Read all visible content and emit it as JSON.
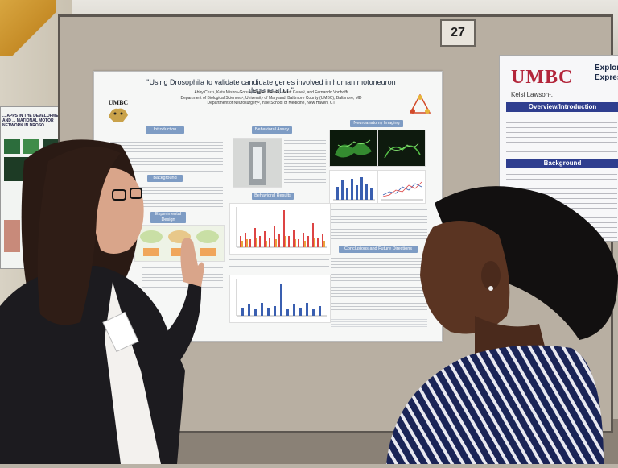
{
  "board_number": "27",
  "left_poster": {
    "header": "... APPS IN THE DEVELOPMENT AND ... MATIONAL MOTOR NETWORK IN DROSO..."
  },
  "main_poster": {
    "title": "\"Using Drosophila to validate candidate genes involved in human motoneuron degeneration\"",
    "authors": "Abby Cruz¹, Ketu Mishra-Gorur², Tanyen Barak², Murat Gunel², and Fernando Vonhoff¹",
    "affiliation_1": "Department of Biological Sciences¹, University of Maryland, Baltimore County (UMBC), Baltimore, MD",
    "affiliation_2": "Department of Neurosurgery², Yale School of Medicine, New Haven, CT",
    "logo_text": "UMBC",
    "sections": {
      "introduction": "Introduction",
      "behavioral_assay": "Behavioral Assay",
      "neuroanatomy": "Neuroanatomy Imaging",
      "background": "Background",
      "experimental_design": "Experimental Design",
      "behavioral_results": "Behavioral Results",
      "conclusions": "Conclusions and Future Directions"
    }
  },
  "right_poster": {
    "logo": "UMBC",
    "title_line_1": "Explori",
    "title_line_2": "Expres",
    "author": "Kelsi Lawson¹,",
    "section_1": "Overview/Introduction",
    "section_2": "Background"
  }
}
